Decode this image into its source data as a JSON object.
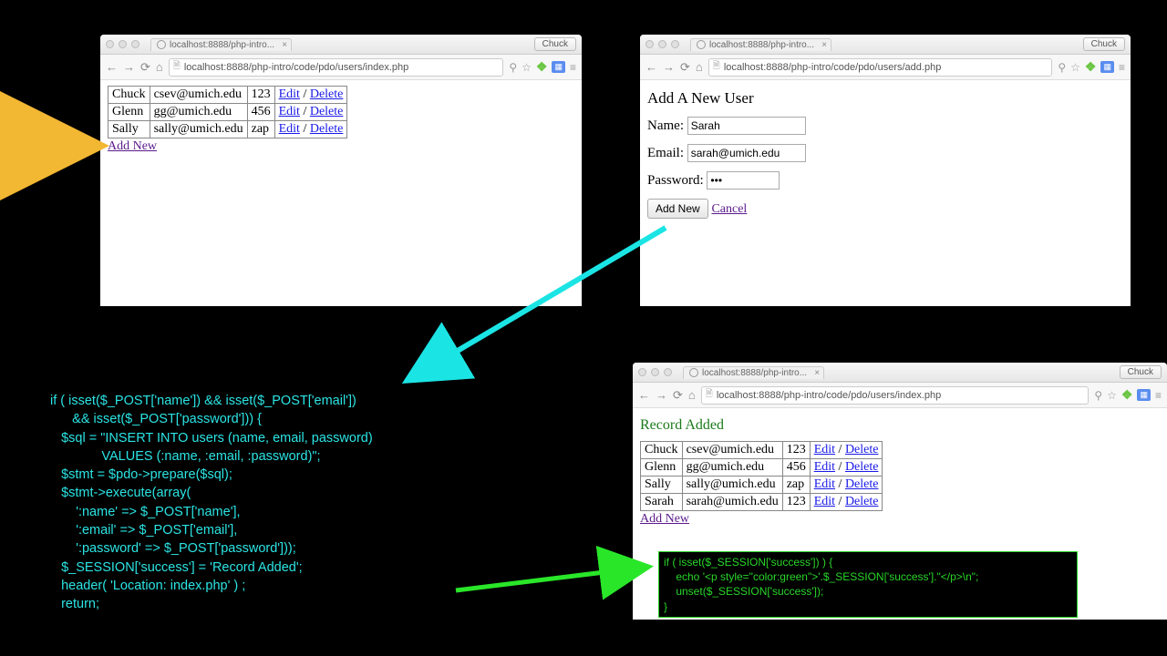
{
  "chuck_label": "Chuck",
  "browser1": {
    "tab": "localhost:8888/php-intro...",
    "url": "localhost:8888/php-intro/code/pdo/users/index.php",
    "rows": [
      {
        "name": "Chuck",
        "email": "csev@umich.edu",
        "pw": "123"
      },
      {
        "name": "Glenn",
        "email": "gg@umich.edu",
        "pw": "456"
      },
      {
        "name": "Sally",
        "email": "sally@umich.edu",
        "pw": "zap"
      }
    ],
    "edit": "Edit",
    "delete": "Delete",
    "addnew": "Add New"
  },
  "browser2": {
    "tab": "localhost:8888/php-intro...",
    "url": "localhost:8888/php-intro/code/pdo/users/add.php",
    "title": "Add A New User",
    "name_label": "Name:",
    "name_val": "Sarah",
    "email_label": "Email:",
    "email_val": "sarah@umich.edu",
    "pw_label": "Password:",
    "pw_val": "•••",
    "submit": "Add New",
    "cancel": "Cancel"
  },
  "browser3": {
    "tab": "localhost:8888/php-intro...",
    "url": "localhost:8888/php-intro/code/pdo/users/index.php",
    "success": "Record Added",
    "rows": [
      {
        "name": "Chuck",
        "email": "csev@umich.edu",
        "pw": "123"
      },
      {
        "name": "Glenn",
        "email": "gg@umich.edu",
        "pw": "456"
      },
      {
        "name": "Sally",
        "email": "sally@umich.edu",
        "pw": "zap"
      },
      {
        "name": "Sarah",
        "email": "sarah@umich.edu",
        "pw": "123"
      }
    ],
    "edit": "Edit",
    "delete": "Delete",
    "addnew": "Add New"
  },
  "code1": "if ( isset($_POST['name']) && isset($_POST['email'])\n      && isset($_POST['password'])) {\n   $sql = \"INSERT INTO users (name, email, password)\n              VALUES (:name, :email, :password)\";\n   $stmt = $pdo->prepare($sql);\n   $stmt->execute(array(\n       ':name' => $_POST['name'],\n       ':email' => $_POST['email'],\n       ':password' => $_POST['password']));\n   $_SESSION['success'] = 'Record Added';\n   header( 'Location: index.php' ) ;\n   return;",
  "code2": "if ( isset($_SESSION['success']) ) {\n    echo '<p style=\"color:green\">'.$_SESSION['success'].\"</p>\\n\";\n    unset($_SESSION['success']);\n}",
  "arrows": {
    "yellow": {
      "color": "#f2b733"
    },
    "cyan": {
      "color": "#1be4e4"
    },
    "green": {
      "color": "#29e629"
    }
  }
}
